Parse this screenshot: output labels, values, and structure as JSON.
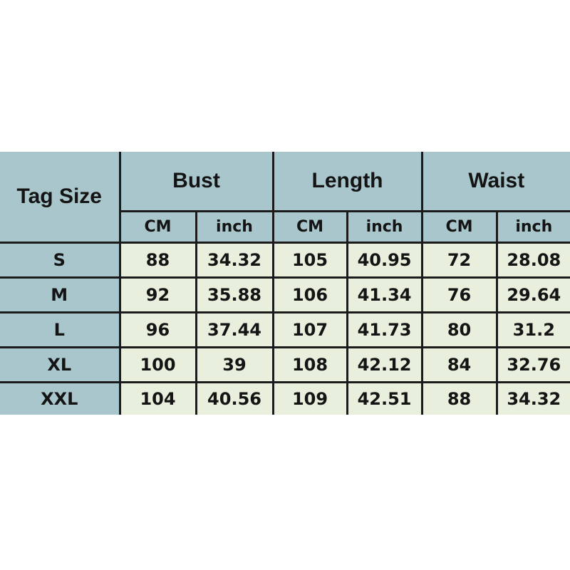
{
  "table": {
    "corner_label": "Tag Size",
    "groups": [
      {
        "label": "Bust"
      },
      {
        "label": "Length"
      },
      {
        "label": "Waist"
      }
    ],
    "sub_headers": [
      "CM",
      "inch",
      "CM",
      "inch",
      "CM",
      "inch"
    ],
    "rows": [
      {
        "size": "S",
        "values": [
          "88",
          "34.32",
          "105",
          "40.95",
          "72",
          "28.08"
        ]
      },
      {
        "size": "M",
        "values": [
          "92",
          "35.88",
          "106",
          "41.34",
          "76",
          "29.64"
        ]
      },
      {
        "size": "L",
        "values": [
          "96",
          "37.44",
          "107",
          "41.73",
          "80",
          "31.2"
        ]
      },
      {
        "size": "XL",
        "values": [
          "100",
          "39",
          "108",
          "42.12",
          "84",
          "32.76"
        ]
      },
      {
        "size": "XXL",
        "values": [
          "104",
          "40.56",
          "109",
          "42.51",
          "88",
          "34.32"
        ]
      }
    ],
    "colors": {
      "header_bg": "#a8c6cc",
      "cell_bg": "#e8efdc",
      "border": "#1b1b1b",
      "text": "#141414",
      "page_bg": "#ffffff"
    }
  }
}
